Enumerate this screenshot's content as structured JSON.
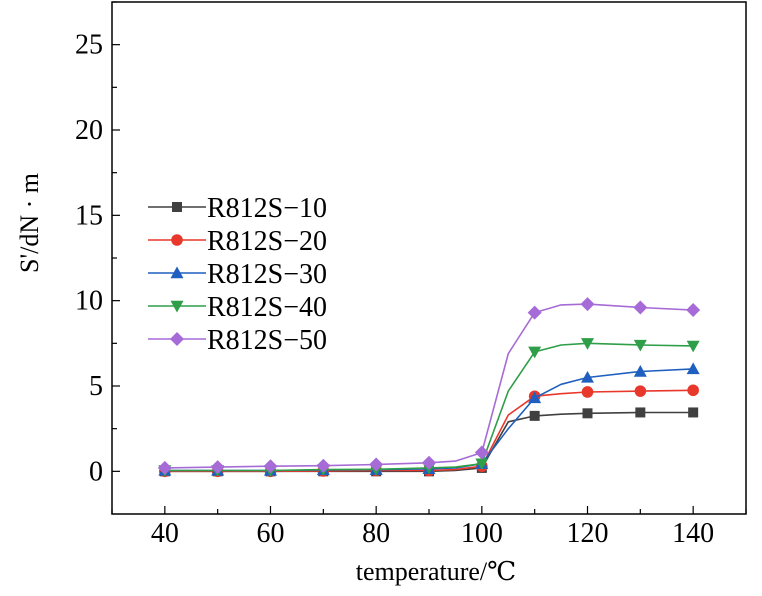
{
  "chart_data": {
    "type": "line",
    "xlabel": "temperature/℃",
    "ylabel": "S'/dN · m",
    "xlim": [
      30,
      150
    ],
    "ylim": [
      -2.5,
      27.5
    ],
    "x_ticks": [
      40,
      60,
      80,
      100,
      120,
      140
    ],
    "y_ticks": [
      0,
      5,
      10,
      15,
      20,
      25
    ],
    "x_tick_labels": [
      "40",
      "60",
      "80",
      "100",
      "120",
      "140"
    ],
    "y_tick_labels": [
      "0",
      "5",
      "10",
      "15",
      "20",
      "25"
    ],
    "legend_position": "left-center",
    "grid": false,
    "x": [
      40,
      50,
      60,
      70,
      80,
      90,
      95,
      100,
      105,
      110,
      115,
      120,
      130,
      140
    ],
    "marker_x": [
      40,
      50,
      60,
      70,
      80,
      90,
      100,
      110,
      120,
      130,
      140
    ],
    "series": [
      {
        "name": "R812S−10",
        "color": "#404040",
        "marker": "square",
        "values": [
          0.0,
          0.0,
          0.0,
          0.0,
          0.0,
          0.0,
          0.05,
          0.2,
          2.9,
          3.25,
          3.35,
          3.4,
          3.45,
          3.45
        ]
      },
      {
        "name": "R812S−20",
        "color": "#e8382c",
        "marker": "circle",
        "values": [
          0.0,
          0.0,
          0.0,
          0.02,
          0.05,
          0.05,
          0.1,
          0.3,
          3.3,
          4.4,
          4.55,
          4.65,
          4.7,
          4.75
        ]
      },
      {
        "name": "R812S−30",
        "color": "#1f5fbf",
        "marker": "triangle-up",
        "values": [
          0.05,
          0.05,
          0.05,
          0.08,
          0.1,
          0.15,
          0.2,
          0.45,
          2.5,
          4.3,
          5.1,
          5.5,
          5.85,
          6.0
        ]
      },
      {
        "name": "R812S−40",
        "color": "#2e9e48",
        "marker": "triangle-down",
        "values": [
          0.05,
          0.05,
          0.05,
          0.1,
          0.12,
          0.2,
          0.25,
          0.45,
          4.7,
          7.0,
          7.4,
          7.5,
          7.4,
          7.35
        ]
      },
      {
        "name": "R812S−50",
        "color": "#a66bd6",
        "marker": "diamond",
        "values": [
          0.2,
          0.25,
          0.3,
          0.33,
          0.4,
          0.5,
          0.6,
          1.1,
          6.9,
          9.3,
          9.75,
          9.8,
          9.6,
          9.45
        ]
      }
    ]
  }
}
